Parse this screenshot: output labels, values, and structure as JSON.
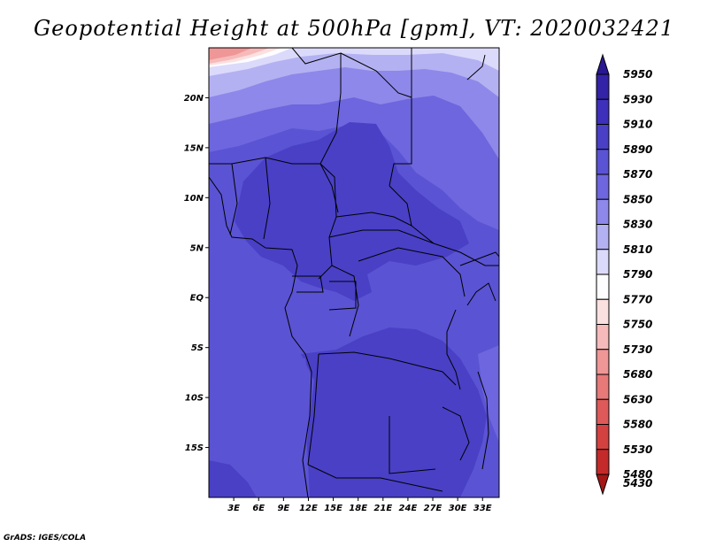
{
  "title": "Geopotential Height at 500hPa [gpm], VT: 2020032421",
  "credit": "GrADS: IGES/COLA",
  "map": {
    "lon_range": [
      0,
      35
    ],
    "lat_range": [
      -20,
      25
    ],
    "lon_ticks": [
      {
        "value": 3,
        "label": "3E"
      },
      {
        "value": 6,
        "label": "6E"
      },
      {
        "value": 9,
        "label": "9E"
      },
      {
        "value": 12,
        "label": "12E"
      },
      {
        "value": 15,
        "label": "15E"
      },
      {
        "value": 18,
        "label": "18E"
      },
      {
        "value": 21,
        "label": "21E"
      },
      {
        "value": 24,
        "label": "24E"
      },
      {
        "value": 27,
        "label": "27E"
      },
      {
        "value": 30,
        "label": "30E"
      },
      {
        "value": 33,
        "label": "33E"
      }
    ],
    "lat_ticks": [
      {
        "value": 20,
        "label": "20N"
      },
      {
        "value": 15,
        "label": "15N"
      },
      {
        "value": 10,
        "label": "10N"
      },
      {
        "value": 5,
        "label": "5N"
      },
      {
        "value": 0,
        "label": "EQ"
      },
      {
        "value": -5,
        "label": "5S"
      },
      {
        "value": -10,
        "label": "10S"
      },
      {
        "value": -15,
        "label": "15S"
      }
    ]
  },
  "colorbar": {
    "levels": [
      {
        "label": "5950",
        "color": "#281892"
      },
      {
        "label": "5930",
        "color": "#3323a7"
      },
      {
        "label": "5910",
        "color": "#3e30bb"
      },
      {
        "label": "5890",
        "color": "#4940c6"
      },
      {
        "label": "5870",
        "color": "#5a53d3"
      },
      {
        "label": "5850",
        "color": "#6d66de"
      },
      {
        "label": "5830",
        "color": "#8e88ea"
      },
      {
        "label": "5810",
        "color": "#b4b1f2"
      },
      {
        "label": "5790",
        "color": "#dcdafa"
      },
      {
        "label": "5770",
        "color": "#fdfdff"
      },
      {
        "label": "5750",
        "color": "#fbe0e0"
      },
      {
        "label": "5730",
        "color": "#f6baba"
      },
      {
        "label": "5680",
        "color": "#ef9696"
      },
      {
        "label": "5630",
        "color": "#e77979"
      },
      {
        "label": "5580",
        "color": "#de5a5a"
      },
      {
        "label": "5530",
        "color": "#d44141"
      },
      {
        "label": "5480",
        "color": "#c52a2a"
      },
      {
        "label": "5430",
        "color": "#a51616"
      }
    ]
  }
}
